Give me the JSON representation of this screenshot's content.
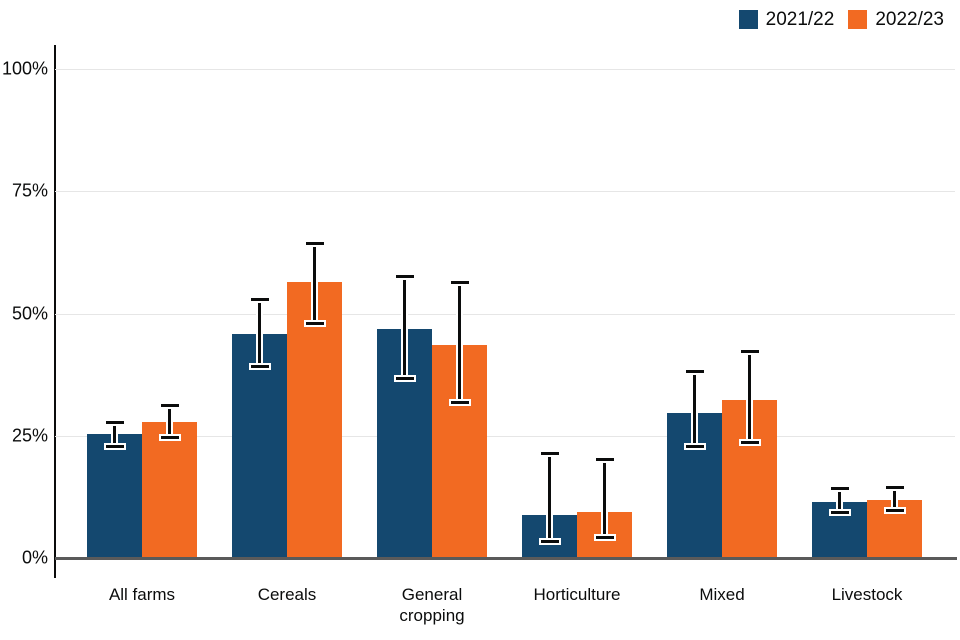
{
  "chart_data": {
    "type": "bar",
    "title": "",
    "xlabel": "",
    "ylabel": "",
    "ylim": [
      0,
      100
    ],
    "grid": true,
    "error_bars": true,
    "legend_position": "top-right",
    "categories": [
      "All farms",
      "Cereals",
      "General cropping",
      "Horticulture",
      "Mixed",
      "Livestock"
    ],
    "y_ticks": [
      {
        "label": "0%",
        "value": 0
      },
      {
        "label": "25%",
        "value": 25
      },
      {
        "label": "50%",
        "value": 50
      },
      {
        "label": "75%",
        "value": 75
      },
      {
        "label": "100%",
        "value": 100
      }
    ],
    "series": [
      {
        "name": "2021/22",
        "color": "#14486F",
        "values": [
          25.4,
          45.8,
          46.8,
          8.8,
          29.7,
          11.5
        ],
        "error_low": [
          22.7,
          39.1,
          36.8,
          3.3,
          22.7,
          9.4
        ],
        "error_high": [
          27.8,
          52.8,
          57.5,
          21.3,
          38.2,
          14.3
        ]
      },
      {
        "name": "2022/23",
        "color": "#F26A22",
        "values": [
          27.8,
          56.4,
          43.6,
          9.4,
          32.3,
          11.9
        ],
        "error_low": [
          24.7,
          47.9,
          31.7,
          4.1,
          23.7,
          9.8
        ],
        "error_high": [
          31.1,
          64.4,
          56.4,
          20.2,
          42.3,
          14.5
        ]
      }
    ]
  },
  "legend": {
    "items": [
      {
        "label": "2021/22",
        "color": "#14486F"
      },
      {
        "label": "2022/23",
        "color": "#F26A22"
      }
    ]
  },
  "colors": {
    "gridline": "#E6E6E6",
    "zero_line": "#5A5A5A",
    "axis_line": "#0B0C0C",
    "text": "#0B0C0C",
    "error_bar": "#0B0C0C",
    "error_bar_halo": "#FFFFFF",
    "background": "#FFFFFF"
  }
}
